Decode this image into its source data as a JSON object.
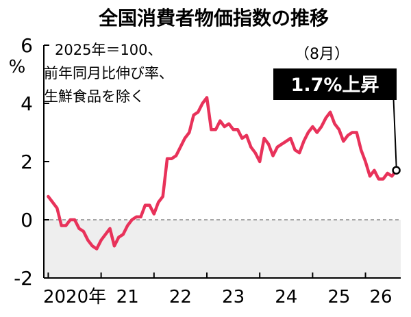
{
  "chart_data": {
    "type": "line",
    "title": "全国消費者物価指数の推移",
    "ylabel": "%",
    "notes": [
      "2025年＝100、",
      "前年同月比伸び率、",
      "生鮮食品を除く"
    ],
    "x_tick_labels": [
      "2020年",
      "21",
      "22",
      "23",
      "24",
      "25",
      "26"
    ],
    "y_ticks": [
      6,
      4,
      2,
      0,
      -2
    ],
    "ylim": [
      -2,
      6
    ],
    "xlim": [
      "2019-12",
      "2026-09"
    ],
    "grid": false,
    "zero_line": "dashed",
    "negative_region_shaded": true,
    "colors": {
      "line": "#e8325a",
      "negative_fill": "#eeeeee",
      "zero_line": "#888888",
      "axis": "#000000",
      "callout_bg": "#000000",
      "callout_text": "#ffffff"
    },
    "series": [
      {
        "x": [
          "2020-01",
          "2020-02",
          "2020-03",
          "2020-04",
          "2020-05",
          "2020-06",
          "2020-07",
          "2020-08",
          "2020-09",
          "2020-10",
          "2020-11",
          "2020-12",
          "2021-01",
          "2021-02",
          "2021-03",
          "2021-04",
          "2021-05",
          "2021-06",
          "2021-07",
          "2021-08",
          "2021-09",
          "2021-10",
          "2021-11",
          "2021-12",
          "2022-01",
          "2022-02",
          "2022-03",
          "2022-04",
          "2022-05",
          "2022-06",
          "2022-07",
          "2022-08",
          "2022-09",
          "2022-10",
          "2022-11",
          "2022-12",
          "2023-01",
          "2023-02",
          "2023-03",
          "2023-04",
          "2023-05",
          "2023-06",
          "2023-07",
          "2023-08",
          "2023-09",
          "2023-10",
          "2023-11",
          "2023-12",
          "2024-01",
          "2024-02",
          "2024-03",
          "2024-04",
          "2024-05",
          "2024-06",
          "2024-07",
          "2024-08",
          "2024-09",
          "2024-10",
          "2024-11",
          "2024-12",
          "2025-01",
          "2025-02",
          "2025-03",
          "2025-04",
          "2025-05",
          "2025-06",
          "2025-07",
          "2025-08",
          "2025-09",
          "2025-10",
          "2025-11",
          "2025-12",
          "2026-01",
          "2026-02",
          "2026-03",
          "2026-04",
          "2026-05",
          "2026-06",
          "2026-07",
          "2026-08"
        ],
        "values": [
          0.8,
          0.6,
          0.4,
          -0.2,
          -0.2,
          0.0,
          0.0,
          -0.3,
          -0.4,
          -0.7,
          -0.9,
          -1.0,
          -0.7,
          -0.5,
          -0.3,
          -0.9,
          -0.6,
          -0.5,
          -0.2,
          0.0,
          0.1,
          0.1,
          0.5,
          0.5,
          0.2,
          0.6,
          0.8,
          2.1,
          2.1,
          2.2,
          2.5,
          2.8,
          3.0,
          3.6,
          3.7,
          4.0,
          4.2,
          3.1,
          3.1,
          3.4,
          3.2,
          3.3,
          3.1,
          3.1,
          2.8,
          2.9,
          2.5,
          2.3,
          2.0,
          2.8,
          2.6,
          2.2,
          2.5,
          2.6,
          2.7,
          2.8,
          2.4,
          2.3,
          2.7,
          3.0,
          3.2,
          3.0,
          3.2,
          3.5,
          3.7,
          3.3,
          3.1,
          2.7,
          2.9,
          3.0,
          3.0,
          2.4,
          2.0,
          1.5,
          1.7,
          1.4,
          1.4,
          1.6,
          1.5,
          1.7
        ]
      }
    ],
    "annotations": {
      "month_label": "（8月）",
      "callout": "1.7%上昇",
      "last_point_marker": "open-circle"
    }
  }
}
